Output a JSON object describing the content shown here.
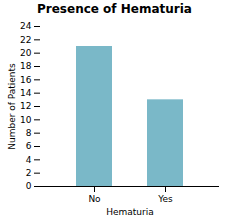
{
  "chart_data": {
    "type": "bar",
    "title": "Presence of Hematuria",
    "categories": [
      "No",
      "Yes"
    ],
    "values": [
      21,
      13
    ],
    "color": "#7ab8c8",
    "xlabel": "Hematuria",
    "ylabel": "Number of Patients",
    "ylim": [
      0,
      24
    ],
    "yticks": [
      0,
      2,
      4,
      6,
      8,
      10,
      12,
      14,
      16,
      18,
      20,
      22,
      24
    ],
    "grid": false
  }
}
